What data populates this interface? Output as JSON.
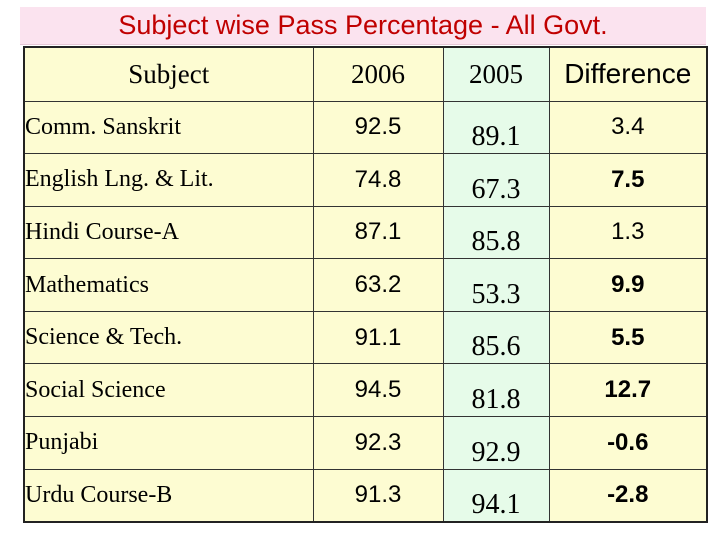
{
  "chart_data": {
    "type": "table",
    "title": "Subject wise Pass Percentage - All Govt.",
    "columns": [
      "Subject",
      "2006",
      "2005",
      "Difference"
    ],
    "rows": [
      {
        "subject": "Comm. Sanskrit",
        "y2006": "92.5",
        "y2005": "89.1",
        "difference": "3.4"
      },
      {
        "subject": "English Lng. & Lit.",
        "y2006": "74.8",
        "y2005": "67.3",
        "difference": "7.5"
      },
      {
        "subject": "Hindi Course-A",
        "y2006": "87.1",
        "y2005": "85.8",
        "difference": "1.3"
      },
      {
        "subject": "Mathematics",
        "y2006": "63.2",
        "y2005": "53.3",
        "difference": "9.9"
      },
      {
        "subject": "Science & Tech.",
        "y2006": "91.1",
        "y2005": "85.6",
        "difference": "5.5"
      },
      {
        "subject": "Social Science",
        "y2006": "94.5",
        "y2005": "81.8",
        "difference": "12.7"
      },
      {
        "subject": "Punjabi",
        "y2006": "92.3",
        "y2005": "92.9",
        "difference": "-0.6"
      },
      {
        "subject": "Urdu Course-B",
        "y2006": "91.3",
        "y2005": "94.1",
        "difference": "-2.8"
      }
    ]
  },
  "colors": {
    "title_text": "#c00000",
    "title_background": "#fbe3ef",
    "cell_yellow": "#fdfcd2",
    "cell_green": "#e6fbe9"
  }
}
